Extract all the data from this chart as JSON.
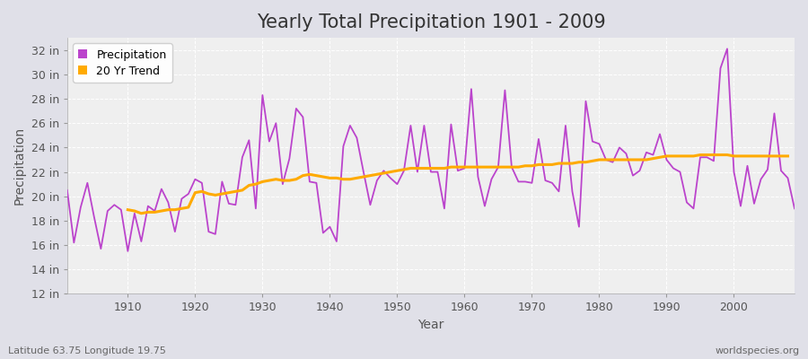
{
  "title": "Yearly Total Precipitation 1901 - 2009",
  "xlabel": "Year",
  "ylabel": "Precipitation",
  "subtitle_left": "Latitude 63.75 Longitude 19.75",
  "subtitle_right": "worldspecies.org",
  "bg_color": "#f0f0f0",
  "plot_bg_color": "#efefef",
  "outer_bg_color": "#e0e0e8",
  "grid_color": "#ffffff",
  "precip_color": "#bb44cc",
  "trend_color": "#ffaa00",
  "years": [
    1901,
    1902,
    1903,
    1904,
    1905,
    1906,
    1907,
    1908,
    1909,
    1910,
    1911,
    1912,
    1913,
    1914,
    1915,
    1916,
    1917,
    1918,
    1919,
    1920,
    1921,
    1922,
    1923,
    1924,
    1925,
    1926,
    1927,
    1928,
    1929,
    1930,
    1931,
    1932,
    1933,
    1934,
    1935,
    1936,
    1937,
    1938,
    1939,
    1940,
    1941,
    1942,
    1943,
    1944,
    1945,
    1946,
    1947,
    1948,
    1949,
    1950,
    1951,
    1952,
    1953,
    1954,
    1955,
    1956,
    1957,
    1958,
    1959,
    1960,
    1961,
    1962,
    1963,
    1964,
    1965,
    1966,
    1967,
    1968,
    1969,
    1970,
    1971,
    1972,
    1973,
    1974,
    1975,
    1976,
    1977,
    1978,
    1979,
    1980,
    1981,
    1982,
    1983,
    1984,
    1985,
    1986,
    1987,
    1988,
    1989,
    1990,
    1991,
    1992,
    1993,
    1994,
    1995,
    1996,
    1997,
    1998,
    1999,
    2000,
    2001,
    2002,
    2003,
    2004,
    2005,
    2006,
    2007,
    2008,
    2009
  ],
  "precip": [
    20.5,
    16.2,
    19.1,
    21.1,
    18.3,
    15.7,
    18.8,
    19.3,
    18.9,
    15.5,
    18.6,
    16.3,
    19.2,
    18.8,
    20.6,
    19.5,
    17.1,
    19.8,
    20.2,
    21.4,
    21.1,
    17.1,
    16.9,
    21.2,
    19.4,
    19.3,
    23.2,
    24.6,
    19.0,
    28.3,
    24.5,
    26.0,
    21.0,
    23.1,
    27.2,
    26.5,
    21.2,
    21.1,
    17.0,
    17.5,
    16.3,
    24.1,
    25.8,
    24.8,
    22.0,
    19.3,
    21.3,
    22.1,
    21.5,
    21.0,
    22.1,
    25.8,
    22.0,
    25.8,
    22.0,
    22.0,
    19.0,
    25.9,
    22.1,
    22.3,
    28.8,
    21.6,
    19.2,
    21.4,
    22.4,
    28.7,
    22.4,
    21.2,
    21.2,
    21.1,
    24.7,
    21.3,
    21.1,
    20.4,
    25.8,
    20.4,
    17.5,
    27.8,
    24.5,
    24.3,
    23.0,
    22.8,
    24.0,
    23.5,
    21.7,
    22.1,
    23.6,
    23.4,
    25.1,
    23.0,
    22.3,
    22.0,
    19.5,
    19.0,
    23.2,
    23.2,
    22.9,
    30.5,
    32.1,
    22.0,
    19.2,
    22.5,
    19.4,
    21.4,
    22.2,
    26.8,
    22.1,
    21.5,
    19.0
  ],
  "trend": [
    null,
    null,
    null,
    null,
    null,
    null,
    null,
    null,
    null,
    18.9,
    18.8,
    18.6,
    18.7,
    18.7,
    18.8,
    18.9,
    18.9,
    19.0,
    19.1,
    20.3,
    20.4,
    20.2,
    20.1,
    20.2,
    20.3,
    20.4,
    20.5,
    20.9,
    21.0,
    21.2,
    21.3,
    21.4,
    21.3,
    21.3,
    21.4,
    21.7,
    21.8,
    21.7,
    21.6,
    21.5,
    21.5,
    21.4,
    21.4,
    21.5,
    21.6,
    21.7,
    21.8,
    21.9,
    22.0,
    22.1,
    22.2,
    22.3,
    22.3,
    22.3,
    22.3,
    22.3,
    22.3,
    22.4,
    22.4,
    22.4,
    22.4,
    22.4,
    22.4,
    22.4,
    22.4,
    22.4,
    22.4,
    22.4,
    22.5,
    22.5,
    22.6,
    22.6,
    22.6,
    22.7,
    22.7,
    22.7,
    22.8,
    22.8,
    22.9,
    23.0,
    23.0,
    23.0,
    23.0,
    23.0,
    23.0,
    23.0,
    23.0,
    23.1,
    23.2,
    23.3,
    23.3,
    23.3,
    23.3,
    23.3,
    23.4,
    23.4,
    23.4,
    23.4,
    23.4,
    23.3,
    23.3,
    23.3,
    23.3,
    23.3,
    23.3,
    23.3,
    23.3,
    23.3
  ],
  "ylim": [
    12,
    33
  ],
  "yticks": [
    12,
    14,
    16,
    18,
    20,
    22,
    24,
    26,
    28,
    30,
    32
  ],
  "xticks": [
    1910,
    1920,
    1930,
    1940,
    1950,
    1960,
    1970,
    1980,
    1990,
    2000
  ],
  "xlim": [
    1901,
    2009
  ],
  "legend_labels": [
    "Precipitation",
    "20 Yr Trend"
  ],
  "legend_colors": [
    "#bb44cc",
    "#ffaa00"
  ],
  "title_fontsize": 15,
  "axis_label_fontsize": 10,
  "tick_fontsize": 9,
  "footer_fontsize": 8
}
